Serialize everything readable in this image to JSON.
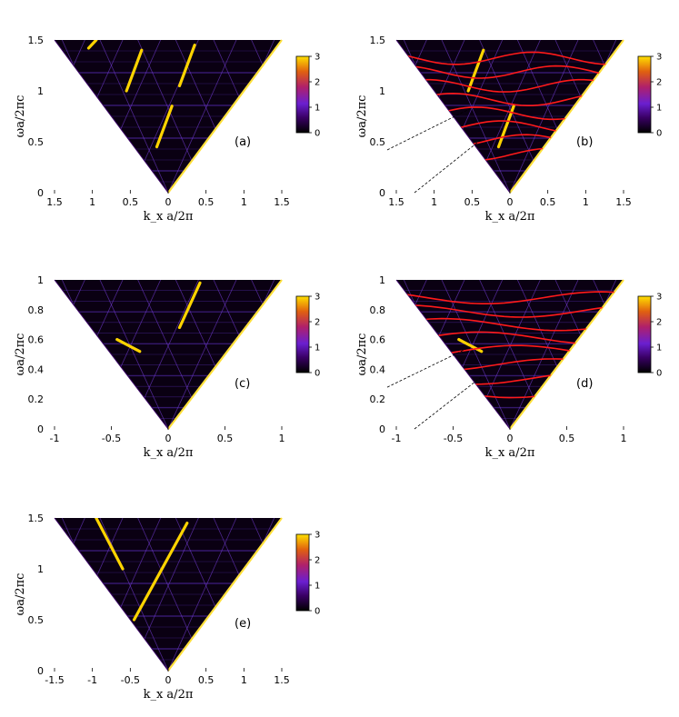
{
  "chart_data": [
    {
      "type": "heatmap",
      "panel_label": "(a)",
      "xlabel": "k_x a/2π",
      "ylabel": "ωa/2πc",
      "xlim": [
        -1.5,
        1.5
      ],
      "ylim": [
        0,
        1.5
      ],
      "x_tick_labels": [
        "1.5",
        "1",
        "0.5",
        "0",
        "0.5",
        "1",
        "1.5"
      ],
      "y_tick_labels": [
        "0",
        "0.5",
        "1",
        "1.5"
      ],
      "colorbar": {
        "range": [
          0,
          3
        ],
        "tick_labels": [
          "0",
          "1",
          "2",
          "3"
        ]
      },
      "overlay_dispersion_curves": false,
      "bright_lines": [
        {
          "x": [
            -0.15,
            0.05
          ],
          "y": [
            0.45,
            0.85
          ]
        },
        {
          "x": [
            -0.55,
            -0.35
          ],
          "y": [
            1.0,
            1.4
          ]
        },
        {
          "x": [
            0.15,
            0.35
          ],
          "y": [
            1.05,
            1.45
          ]
        },
        {
          "x": [
            -1.05,
            -0.95
          ],
          "y": [
            1.42,
            1.5
          ]
        }
      ]
    },
    {
      "type": "heatmap",
      "panel_label": "(b)",
      "xlabel": "k_x a/2π",
      "ylabel": "ωa/2πc",
      "xlim": [
        -1.5,
        1.5
      ],
      "ylim": [
        0,
        1.5
      ],
      "x_tick_labels": [
        "1.5",
        "1",
        "0.5",
        "0",
        "0.5",
        "1",
        "1.5"
      ],
      "y_tick_labels": [
        "0",
        "0.5",
        "1",
        "1.5"
      ],
      "colorbar": {
        "range": [
          0,
          3
        ],
        "tick_labels": [
          "0",
          "1",
          "2",
          "3"
        ]
      },
      "overlay_dispersion_curves": true,
      "bright_lines": [
        {
          "x": [
            -0.15,
            0.05
          ],
          "y": [
            0.45,
            0.85
          ]
        },
        {
          "x": [
            -0.55,
            -0.35
          ],
          "y": [
            1.0,
            1.4
          ]
        }
      ]
    },
    {
      "type": "heatmap",
      "panel_label": "(c)",
      "xlabel": "k_x a/2π",
      "ylabel": "ωa/2πc",
      "xlim": [
        -1,
        1
      ],
      "ylim": [
        0,
        1
      ],
      "x_tick_labels": [
        "-1",
        "-0.5",
        "0",
        "0.5",
        "1"
      ],
      "y_tick_labels": [
        "0",
        "0.2",
        "0.4",
        "0.6",
        "0.8",
        "1"
      ],
      "colorbar": {
        "range": [
          0,
          3
        ],
        "tick_labels": [
          "0",
          "1",
          "2",
          "3"
        ]
      },
      "overlay_dispersion_curves": false,
      "bright_lines": [
        {
          "x": [
            -0.45,
            -0.25
          ],
          "y": [
            0.6,
            0.52
          ]
        },
        {
          "x": [
            0.1,
            0.28
          ],
          "y": [
            0.68,
            0.98
          ]
        }
      ]
    },
    {
      "type": "heatmap",
      "panel_label": "(d)",
      "xlabel": "k_x a/2π",
      "ylabel": "ωa/2πc",
      "xlim": [
        -1,
        1
      ],
      "ylim": [
        0,
        1
      ],
      "x_tick_labels": [
        "-1",
        "-0.5",
        "0",
        "0.5",
        "1"
      ],
      "y_tick_labels": [
        "0",
        "0.2",
        "0.4",
        "0.6",
        "0.8",
        "1"
      ],
      "colorbar": {
        "range": [
          0,
          3
        ],
        "tick_labels": [
          "0",
          "1",
          "2",
          "3"
        ]
      },
      "overlay_dispersion_curves": true,
      "bright_lines": [
        {
          "x": [
            -0.45,
            -0.25
          ],
          "y": [
            0.6,
            0.52
          ]
        }
      ]
    },
    {
      "type": "heatmap",
      "panel_label": "(e)",
      "xlabel": "k_x a/2π",
      "ylabel": "ωa/2πc",
      "xlim": [
        -1.5,
        1.5
      ],
      "ylim": [
        0,
        1.5
      ],
      "x_tick_labels": [
        "-1.5",
        "-1",
        "-0.5",
        "0",
        "0.5",
        "1",
        "1.5"
      ],
      "y_tick_labels": [
        "0",
        "0.5",
        "1",
        "1.5"
      ],
      "colorbar": {
        "range": [
          0,
          3
        ],
        "tick_labels": [
          "0",
          "1",
          "2",
          "3"
        ]
      },
      "overlay_dispersion_curves": false,
      "bright_lines": [
        {
          "x": [
            -0.95,
            -0.6
          ],
          "y": [
            1.5,
            1.0
          ]
        },
        {
          "x": [
            -0.45,
            0.25
          ],
          "y": [
            0.5,
            1.45
          ]
        }
      ]
    }
  ],
  "colors": {
    "colormap": [
      "#000000",
      "#3a0066",
      "#6a1fd0",
      "#b0206a",
      "#e06010",
      "#ffd000",
      "#fff27a"
    ],
    "band": "#5a2db8",
    "overlay": "#ff1a1a",
    "light_line": "#ffe03a"
  }
}
